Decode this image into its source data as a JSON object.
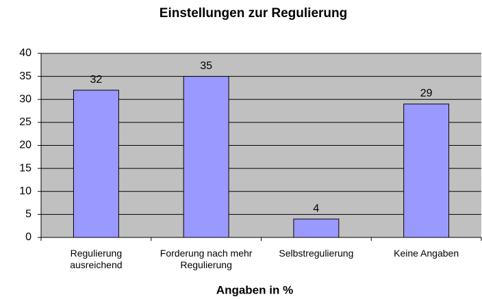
{
  "chart_data": {
    "type": "bar",
    "title": "Einstellungen zur Regulierung",
    "x_label": "Angaben in %",
    "categories": [
      "Regulierung ausreichend",
      "Forderung nach mehr Regulierung",
      "Selbstregulierung",
      "Keine Angaben"
    ],
    "values": [
      32,
      35,
      4,
      29
    ],
    "color": "#9999ff",
    "background": "#c0c0c0",
    "ylim": [
      0,
      40
    ],
    "yticks": [
      0,
      5,
      10,
      15,
      20,
      25,
      30,
      35,
      40
    ],
    "grid": true
  }
}
